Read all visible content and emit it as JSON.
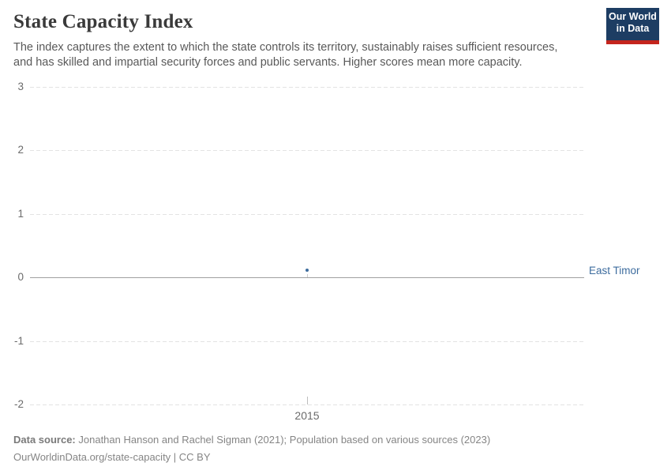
{
  "header": {
    "title": "State Capacity Index",
    "subtitle": "The index captures the extent to which the state controls its territory, sustainably raises sufficient resources, and has skilled and impartial security forces and public servants. Higher scores mean more capacity.",
    "logo": {
      "line1": "Our World",
      "line2": "in Data"
    }
  },
  "chart_data": {
    "type": "scatter",
    "series": [
      {
        "name": "East Timor",
        "x": [
          2015
        ],
        "values": [
          0.11
        ]
      }
    ],
    "entity_label": "East Timor",
    "x_ticks": [
      "2015"
    ],
    "y_gridlines": [
      3,
      2,
      1,
      0,
      -1,
      -2
    ],
    "ylim": [
      -2,
      3
    ],
    "grid": "horizontal dashed gridlines, solid line at zero",
    "legend_position": "entity label right of plot at point height"
  },
  "colors": {
    "series_blue": "#3d6c9e",
    "logo_navy": "#1d3d63",
    "logo_red": "#c4251d",
    "gridline": "#e3e3e3",
    "zero_line": "#a0a0a0",
    "axis_text": "#6b6b6b",
    "title_text": "#3a3a3a",
    "subtitle_text": "#595959",
    "footer_text": "#858585"
  },
  "footer": {
    "data_source_label": "Data source:",
    "data_source_text": "Jonathan Hanson and Rachel Sigman (2021); Population based on various sources (2023)",
    "citation": "OurWorldinData.org/state-capacity | CC BY"
  }
}
